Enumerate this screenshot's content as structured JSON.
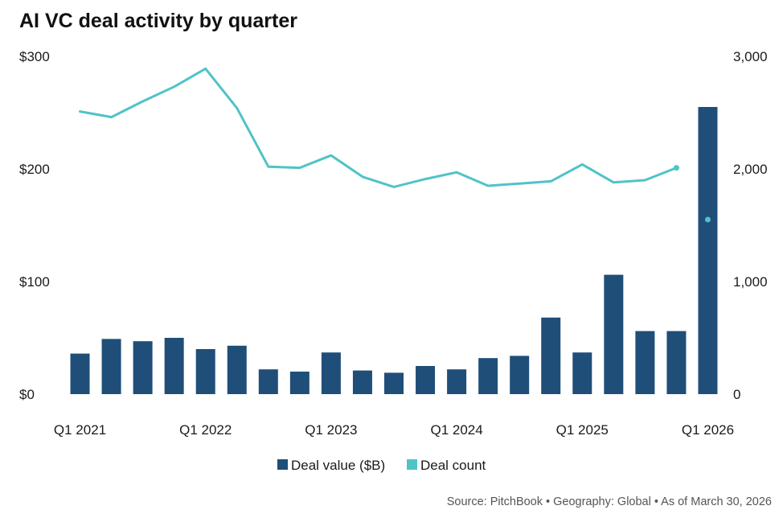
{
  "chart_data": {
    "type": "bar",
    "title": "AI VC deal activity by quarter",
    "categories": [
      "Q1 2021",
      "Q2 2021",
      "Q3 2021",
      "Q4 2021",
      "Q1 2022",
      "Q2 2022",
      "Q3 2022",
      "Q4 2022",
      "Q1 2023",
      "Q2 2023",
      "Q3 2023",
      "Q4 2023",
      "Q1 2024",
      "Q2 2024",
      "Q3 2024",
      "Q4 2024",
      "Q1 2025",
      "Q2 2025",
      "Q3 2025",
      "Q4 2025",
      "Q1 2026"
    ],
    "x_tick_labels": [
      "Q1 2021",
      "Q1 2022",
      "Q1 2023",
      "Q1 2024",
      "Q1 2025",
      "Q1 2026"
    ],
    "series": [
      {
        "name": "Deal value ($B)",
        "type": "bar",
        "axis": "left",
        "color": "#1f4e79",
        "values": [
          36,
          49,
          47,
          50,
          40,
          43,
          22,
          20,
          37,
          21,
          19,
          25,
          22,
          32,
          34,
          68,
          37,
          106,
          56,
          56,
          255
        ]
      },
      {
        "name": "Deal count",
        "type": "line",
        "axis": "right",
        "color": "#4fc3c8",
        "values": [
          2510,
          2460,
          2600,
          2730,
          2890,
          2540,
          2020,
          2010,
          2120,
          1930,
          1840,
          1910,
          1970,
          1850,
          1870,
          1890,
          2040,
          1880,
          1900,
          2010,
          1550
        ],
        "line_points": 20,
        "isolated_points": [
          19,
          20
        ]
      }
    ],
    "y_left": {
      "ticks": [
        "$0",
        "$100",
        "$200",
        "$300"
      ],
      "tick_values": [
        0,
        100,
        200,
        300
      ],
      "range": [
        0,
        300
      ]
    },
    "y_right": {
      "ticks": [
        "0",
        "1,000",
        "2,000",
        "3,000"
      ],
      "tick_values": [
        0,
        1000,
        2000,
        3000
      ],
      "range": [
        0,
        3000
      ]
    },
    "grid": false,
    "legend": {
      "position": "bottom",
      "entries": [
        "Deal value ($B)",
        "Deal count"
      ]
    },
    "source": "Source: PitchBook • Geography: Global • As of March 30, 2026"
  }
}
